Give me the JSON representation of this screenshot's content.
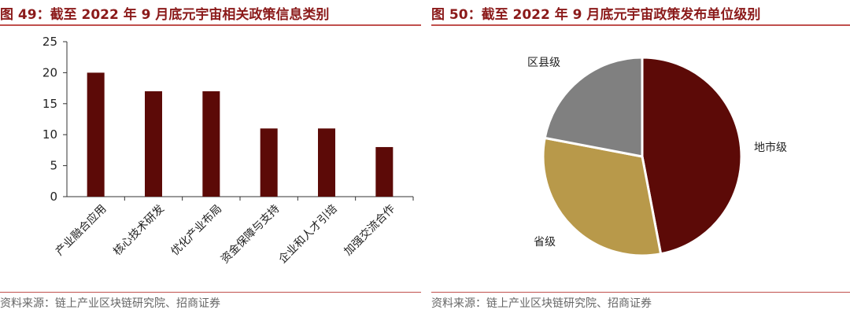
{
  "left": {
    "title": "图 49：截至 2022 年 9 月底元宇宙相关政策信息类别",
    "source": "资料来源：链上产业区块链研究院、招商证券"
  },
  "right": {
    "title": "图 50：截至 2022 年 9 月底元宇宙政策发布单位级别",
    "source": "资料来源：链上产业区块链研究院、招商证券"
  },
  "colors": {
    "title": "#8B1A1A",
    "rule": "#c0504d"
  },
  "chart_data": [
    {
      "type": "bar",
      "categories": [
        "产业融合应用",
        "核心技术研发",
        "优化产业布局",
        "资金保障与支持",
        "企业和人才引培",
        "加强交流合作"
      ],
      "values": [
        20,
        17,
        17,
        11,
        11,
        8
      ],
      "title": "",
      "xlabel": "",
      "ylabel": "",
      "ylim": [
        0,
        25
      ],
      "yticks": [
        0,
        5,
        10,
        15,
        20,
        25
      ],
      "grid": false,
      "color": "#5c0a07"
    },
    {
      "type": "pie",
      "labels": [
        "地市级",
        "省级",
        "区县级"
      ],
      "values": [
        47,
        31,
        22
      ],
      "colors": [
        "#5c0a07",
        "#b8994a",
        "#808080"
      ],
      "title": "",
      "legend": "none"
    }
  ]
}
